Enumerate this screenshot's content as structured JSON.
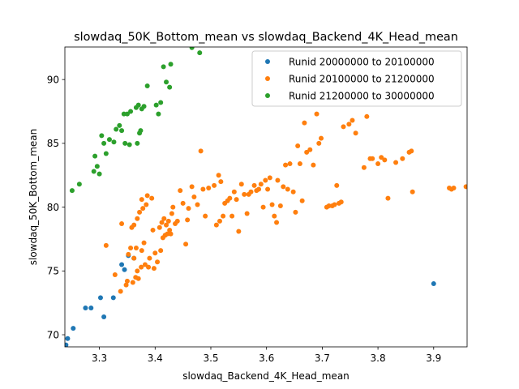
{
  "chart_data": {
    "type": "scatter",
    "title": "slowdaq_50K_Bottom_mean vs slowdaq_Backend_4K_Head_mean",
    "xlabel": "slowdaq_Backend_4K_Head_mean",
    "ylabel": "slowdaq_50K_Bottom_mean",
    "xlim": [
      3.238,
      3.96
    ],
    "ylim": [
      69.05,
      92.55
    ],
    "xticks": [
      3.3,
      3.4,
      3.5,
      3.6,
      3.7,
      3.8,
      3.9
    ],
    "xtick_labels": [
      "3.3",
      "3.4",
      "3.5",
      "3.6",
      "3.7",
      "3.8",
      "3.9"
    ],
    "yticks": [
      70,
      75,
      80,
      85,
      90
    ],
    "ytick_labels": [
      "70",
      "75",
      "80",
      "85",
      "90"
    ],
    "grid": false,
    "legend_position": "top-right",
    "series": [
      {
        "name": "Runid 20000000 to 20100000",
        "color": "#1f77b4",
        "points": [
          [
            3.24,
            69.2
          ],
          [
            3.243,
            69.7
          ],
          [
            3.253,
            70.5
          ],
          [
            3.275,
            72.1
          ],
          [
            3.285,
            72.1
          ],
          [
            3.302,
            72.9
          ],
          [
            3.308,
            71.4
          ],
          [
            3.325,
            72.9
          ],
          [
            3.34,
            75.5
          ],
          [
            3.345,
            75.1
          ],
          [
            3.352,
            76.2
          ],
          [
            3.362,
            76.0
          ],
          [
            3.9,
            74.0
          ]
        ]
      },
      {
        "name": "Runid 20100000 to 21200000",
        "color": "#ff7f0e",
        "points": [
          [
            3.312,
            77.0
          ],
          [
            3.328,
            74.7
          ],
          [
            3.338,
            73.4
          ],
          [
            3.34,
            78.7
          ],
          [
            3.348,
            73.9
          ],
          [
            3.35,
            74.2
          ],
          [
            3.352,
            76.3
          ],
          [
            3.356,
            76.8
          ],
          [
            3.358,
            78.4
          ],
          [
            3.36,
            74.1
          ],
          [
            3.362,
            76.0
          ],
          [
            3.362,
            78.6
          ],
          [
            3.365,
            74.5
          ],
          [
            3.366,
            76.8
          ],
          [
            3.368,
            75.0
          ],
          [
            3.368,
            79.1
          ],
          [
            3.37,
            74.4
          ],
          [
            3.372,
            79.6
          ],
          [
            3.375,
            75.3
          ],
          [
            3.376,
            76.6
          ],
          [
            3.376,
            80.6
          ],
          [
            3.378,
            79.9
          ],
          [
            3.38,
            77.2
          ],
          [
            3.382,
            75.5
          ],
          [
            3.384,
            80.2
          ],
          [
            3.386,
            80.9
          ],
          [
            3.388,
            75.3
          ],
          [
            3.39,
            76.0
          ],
          [
            3.394,
            80.7
          ],
          [
            3.396,
            78.2
          ],
          [
            3.398,
            75.2
          ],
          [
            3.4,
            76.4
          ],
          [
            3.404,
            75.7
          ],
          [
            3.408,
            78.4
          ],
          [
            3.41,
            76.6
          ],
          [
            3.412,
            78.8
          ],
          [
            3.414,
            77.6
          ],
          [
            3.416,
            79.1
          ],
          [
            3.418,
            77.8
          ],
          [
            3.42,
            78.6
          ],
          [
            3.422,
            77.9
          ],
          [
            3.424,
            78.9
          ],
          [
            3.426,
            78.2
          ],
          [
            3.428,
            77.9
          ],
          [
            3.43,
            79.5
          ],
          [
            3.432,
            80.0
          ],
          [
            3.436,
            78.7
          ],
          [
            3.44,
            78.9
          ],
          [
            3.445,
            81.3
          ],
          [
            3.45,
            80.3
          ],
          [
            3.455,
            77.1
          ],
          [
            3.458,
            79.0
          ],
          [
            3.46,
            79.9
          ],
          [
            3.466,
            81.6
          ],
          [
            3.47,
            80.8
          ],
          [
            3.476,
            80.2
          ],
          [
            3.482,
            84.4
          ],
          [
            3.486,
            81.4
          ],
          [
            3.49,
            79.3
          ],
          [
            3.496,
            81.5
          ],
          [
            3.506,
            81.7
          ],
          [
            3.51,
            78.6
          ],
          [
            3.514,
            82.5
          ],
          [
            3.516,
            78.9
          ],
          [
            3.518,
            82.0
          ],
          [
            3.522,
            79.3
          ],
          [
            3.525,
            80.3
          ],
          [
            3.53,
            80.5
          ],
          [
            3.534,
            80.7
          ],
          [
            3.538,
            79.3
          ],
          [
            3.542,
            81.2
          ],
          [
            3.546,
            80.6
          ],
          [
            3.55,
            78.1
          ],
          [
            3.555,
            81.8
          ],
          [
            3.56,
            81.0
          ],
          [
            3.565,
            79.5
          ],
          [
            3.568,
            81.0
          ],
          [
            3.572,
            81.2
          ],
          [
            3.578,
            81.7
          ],
          [
            3.582,
            81.3
          ],
          [
            3.586,
            81.4
          ],
          [
            3.59,
            81.8
          ],
          [
            3.594,
            80.0
          ],
          [
            3.598,
            82.1
          ],
          [
            3.602,
            81.4
          ],
          [
            3.606,
            82.3
          ],
          [
            3.61,
            80.2
          ],
          [
            3.614,
            79.3
          ],
          [
            3.618,
            78.8
          ],
          [
            3.62,
            82.1
          ],
          [
            3.625,
            80.1
          ],
          [
            3.63,
            81.6
          ],
          [
            3.634,
            83.3
          ],
          [
            3.638,
            81.4
          ],
          [
            3.642,
            83.4
          ],
          [
            3.648,
            81.2
          ],
          [
            3.652,
            79.6
          ],
          [
            3.656,
            84.8
          ],
          [
            3.66,
            83.4
          ],
          [
            3.664,
            80.5
          ],
          [
            3.668,
            86.6
          ],
          [
            3.672,
            84.3
          ],
          [
            3.678,
            84.5
          ],
          [
            3.684,
            83.3
          ],
          [
            3.69,
            87.3
          ],
          [
            3.694,
            85.0
          ],
          [
            3.698,
            85.4
          ],
          [
            3.708,
            80.0
          ],
          [
            3.712,
            80.1
          ],
          [
            3.718,
            80.1
          ],
          [
            3.722,
            80.2
          ],
          [
            3.726,
            81.7
          ],
          [
            3.73,
            80.3
          ],
          [
            3.734,
            80.4
          ],
          [
            3.738,
            86.3
          ],
          [
            3.748,
            86.5
          ],
          [
            3.754,
            86.8
          ],
          [
            3.76,
            85.8
          ],
          [
            3.775,
            83.1
          ],
          [
            3.78,
            87.1
          ],
          [
            3.786,
            83.8
          ],
          [
            3.79,
            83.8
          ],
          [
            3.8,
            83.4
          ],
          [
            3.806,
            83.9
          ],
          [
            3.812,
            83.7
          ],
          [
            3.818,
            80.7
          ],
          [
            3.832,
            83.5
          ],
          [
            3.844,
            83.8
          ],
          [
            3.856,
            84.3
          ],
          [
            3.86,
            84.4
          ],
          [
            3.862,
            81.2
          ],
          [
            3.928,
            81.5
          ],
          [
            3.932,
            81.4
          ],
          [
            3.936,
            81.5
          ],
          [
            3.958,
            81.6
          ]
        ]
      },
      {
        "name": "Runid 21200000 to 30000000",
        "color": "#2ca02c",
        "points": [
          [
            3.251,
            81.3
          ],
          [
            3.264,
            81.8
          ],
          [
            3.29,
            82.8
          ],
          [
            3.292,
            84.0
          ],
          [
            3.296,
            83.2
          ],
          [
            3.3,
            82.6
          ],
          [
            3.304,
            85.6
          ],
          [
            3.308,
            85.0
          ],
          [
            3.312,
            84.2
          ],
          [
            3.318,
            85.3
          ],
          [
            3.326,
            85.1
          ],
          [
            3.33,
            86.1
          ],
          [
            3.336,
            86.4
          ],
          [
            3.34,
            86.0
          ],
          [
            3.344,
            87.3
          ],
          [
            3.346,
            85.0
          ],
          [
            3.35,
            87.3
          ],
          [
            3.354,
            84.9
          ],
          [
            3.356,
            87.5
          ],
          [
            3.366,
            87.8
          ],
          [
            3.368,
            85.0
          ],
          [
            3.37,
            88.0
          ],
          [
            3.372,
            85.8
          ],
          [
            3.374,
            86.0
          ],
          [
            3.376,
            87.7
          ],
          [
            3.38,
            87.9
          ],
          [
            3.386,
            89.5
          ],
          [
            3.402,
            88.0
          ],
          [
            3.406,
            87.3
          ],
          [
            3.41,
            88.2
          ],
          [
            3.415,
            91.0
          ],
          [
            3.42,
            89.8
          ],
          [
            3.426,
            89.4
          ],
          [
            3.428,
            91.2
          ],
          [
            3.466,
            92.5
          ],
          [
            3.48,
            92.1
          ]
        ]
      }
    ]
  }
}
